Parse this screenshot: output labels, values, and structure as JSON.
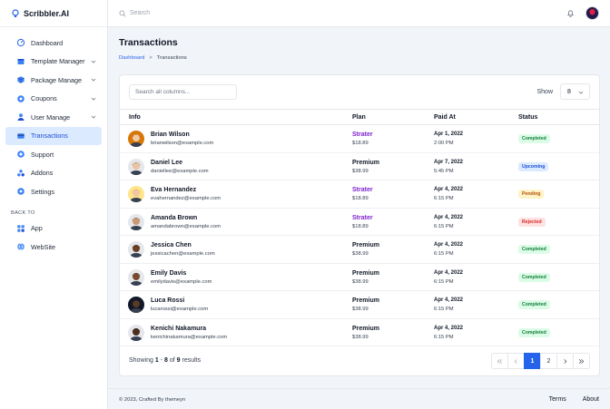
{
  "brand": {
    "name": "Scribbler.AI"
  },
  "colors": {
    "accent": "#2563eb",
    "strater": "#7e22ce"
  },
  "topbar": {
    "search_placeholder": "Search"
  },
  "sidebar": {
    "items": [
      {
        "label": "Dashboard",
        "icon": "dashboard-icon"
      },
      {
        "label": "Template Manager",
        "icon": "template-icon"
      },
      {
        "label": "Package Manage",
        "icon": "package-icon"
      },
      {
        "label": "Coupons",
        "icon": "coupon-icon"
      },
      {
        "label": "User Manage",
        "icon": "user-icon"
      },
      {
        "label": "Transactions",
        "icon": "transactions-icon"
      },
      {
        "label": "Support",
        "icon": "support-icon"
      },
      {
        "label": "Addons",
        "icon": "addons-icon"
      },
      {
        "label": "Settings",
        "icon": "gear-icon"
      }
    ],
    "group_label": "BACK TO",
    "back_items": [
      {
        "label": "App",
        "icon": "app-grid-icon"
      },
      {
        "label": "WebSite",
        "icon": "globe-icon"
      }
    ]
  },
  "page": {
    "title": "Transactions",
    "breadcrumb": {
      "home": "Dashboard",
      "separator": ">",
      "current": "Transactions"
    }
  },
  "table": {
    "search_placeholder": "Search all columns...",
    "show_label": "Show",
    "show_value": "8",
    "columns": [
      "Info",
      "Plan",
      "Paid At",
      "Status"
    ],
    "rows": [
      {
        "name": "Brian Wilson",
        "email": "brianwilson@example.com",
        "plan": "Strater",
        "price": "$18.89",
        "date": "Apr 1, 2022",
        "time": "2:00 PM",
        "status": "Completed"
      },
      {
        "name": "Daniel Lee",
        "email": "daniellee@example.com",
        "plan": "Premium",
        "price": "$38.99",
        "date": "Apr 7, 2022",
        "time": "5:45 PM",
        "status": "Upcoming"
      },
      {
        "name": "Eva Hernandez",
        "email": "evahernandez@example.com",
        "plan": "Strater",
        "price": "$18.89",
        "date": "Apr 4, 2022",
        "time": "6:15 PM",
        "status": "Pending"
      },
      {
        "name": "Amanda Brown",
        "email": "amandabrown@example.com",
        "plan": "Strater",
        "price": "$18.89",
        "date": "Apr 4, 2022",
        "time": "6:15 PM",
        "status": "Rejected"
      },
      {
        "name": "Jessica Chen",
        "email": "jessicachen@example.com",
        "plan": "Premium",
        "price": "$38.99",
        "date": "Apr 4, 2022",
        "time": "6:15 PM",
        "status": "Completed"
      },
      {
        "name": "Emily Davis",
        "email": "emilydavis@example.com",
        "plan": "Premium",
        "price": "$38.99",
        "date": "Apr 4, 2022",
        "time": "6:15 PM",
        "status": "Completed"
      },
      {
        "name": "Luca Rossi",
        "email": "lucarossi@example.com",
        "plan": "Premium",
        "price": "$38.99",
        "date": "Apr 4, 2022",
        "time": "6:15 PM",
        "status": "Completed"
      },
      {
        "name": "Kenichi Nakamura",
        "email": "kenichinakamura@example.com",
        "plan": "Premium",
        "price": "$38.99",
        "date": "Apr 4, 2022",
        "time": "6:15 PM",
        "status": "Completed"
      }
    ],
    "status_colors": {
      "Completed": {
        "bg": "#dcfce7",
        "fg": "#15803d"
      },
      "Upcoming": {
        "bg": "#dbeafe",
        "fg": "#1d4ed8"
      },
      "Pending": {
        "bg": "#fef3c7",
        "fg": "#b45309"
      },
      "Rejected": {
        "bg": "#fee2e2",
        "fg": "#dc2626"
      }
    },
    "results": {
      "prefix": "Showing",
      "from": "1",
      "dash": "-",
      "to": "8",
      "of_word": "of",
      "total": "9",
      "suffix": "results"
    },
    "pagination": {
      "pages": [
        "1",
        "2"
      ],
      "current": "1"
    }
  },
  "footer": {
    "copyright": "© 2023, Crafted By themeyn",
    "links": [
      "Terms",
      "About"
    ]
  }
}
